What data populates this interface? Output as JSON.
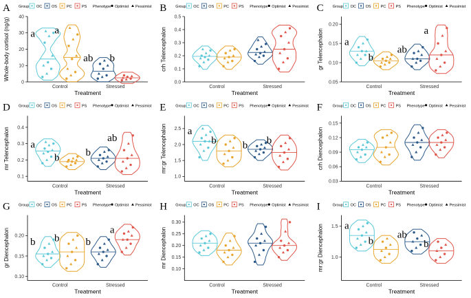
{
  "figure": {
    "legend": {
      "group_title": "Group",
      "groups": [
        {
          "label": "OC",
          "color": "#5bc8d8"
        },
        {
          "label": "OS",
          "color": "#2b5a8a"
        },
        {
          "label": "PC",
          "color": "#e8a42c"
        },
        {
          "label": "PS",
          "color": "#e0554a"
        }
      ],
      "phenotype_title": "Phenotype",
      "phenotypes": [
        {
          "label": "Optimist",
          "shape": "circle"
        },
        {
          "label": "Pessimist",
          "shape": "triangle"
        }
      ]
    },
    "x_title": "Treatment",
    "x_categories": [
      "Control",
      "Stressed"
    ]
  },
  "chart_data": [
    {
      "panel": "A",
      "type": "violin",
      "ylabel": "Whole-body cortisol (ng/g)",
      "ylim": [
        0,
        40
      ],
      "yticks": [
        0,
        10,
        20,
        30,
        40
      ],
      "groups": [
        {
          "name": "OC",
          "treatment": "Control",
          "values": [
            3,
            5,
            8,
            10,
            12,
            16,
            24,
            28,
            30,
            31
          ]
        },
        {
          "name": "PC",
          "treatment": "Control",
          "values": [
            2,
            4,
            6,
            8,
            14,
            16,
            22,
            26,
            29,
            33
          ]
        },
        {
          "name": "OS",
          "treatment": "Stressed",
          "values": [
            2,
            3,
            4,
            5,
            8,
            10,
            11,
            13
          ]
        },
        {
          "name": "PS",
          "treatment": "Stressed",
          "values": [
            1,
            1.5,
            2,
            2.5,
            3,
            3.5,
            4
          ]
        }
      ],
      "letters": [
        "a",
        "a",
        "ab",
        "b"
      ]
    },
    {
      "panel": "B",
      "type": "violin",
      "ylabel": "crh Telencephalon",
      "ylim": [
        0,
        0.5
      ],
      "yticks": [
        0.0,
        0.1,
        0.2,
        0.3,
        0.4,
        0.5
      ],
      "groups": [
        {
          "name": "OC",
          "treatment": "Control",
          "values": [
            0.12,
            0.15,
            0.17,
            0.18,
            0.19,
            0.2,
            0.2,
            0.22,
            0.24,
            0.25
          ]
        },
        {
          "name": "PC",
          "treatment": "Control",
          "values": [
            0.12,
            0.15,
            0.16,
            0.18,
            0.19,
            0.2,
            0.22,
            0.24,
            0.25
          ]
        },
        {
          "name": "OS",
          "treatment": "Stressed",
          "values": [
            0.16,
            0.19,
            0.2,
            0.21,
            0.22,
            0.23,
            0.25,
            0.27,
            0.29,
            0.32
          ]
        },
        {
          "name": "PS",
          "treatment": "Stressed",
          "values": [
            0.1,
            0.15,
            0.18,
            0.22,
            0.25,
            0.3,
            0.35,
            0.38,
            0.41
          ]
        }
      ],
      "letters": []
    },
    {
      "panel": "C",
      "type": "violin",
      "ylabel": "gr Telencephalon",
      "ylim": [
        0.05,
        0.22
      ],
      "yticks": [
        0.05,
        0.1,
        0.15,
        0.2
      ],
      "groups": [
        {
          "name": "OC",
          "treatment": "Control",
          "values": [
            0.1,
            0.11,
            0.12,
            0.12,
            0.13,
            0.13,
            0.14,
            0.15,
            0.16
          ]
        },
        {
          "name": "PC",
          "treatment": "Control",
          "values": [
            0.09,
            0.095,
            0.1,
            0.1,
            0.105,
            0.11,
            0.11,
            0.115,
            0.12
          ]
        },
        {
          "name": "OS",
          "treatment": "Stressed",
          "values": [
            0.09,
            0.1,
            0.105,
            0.11,
            0.11,
            0.12,
            0.125,
            0.13,
            0.14
          ]
        },
        {
          "name": "PS",
          "treatment": "Stressed",
          "values": [
            0.08,
            0.09,
            0.1,
            0.11,
            0.12,
            0.13,
            0.15,
            0.17,
            0.19
          ]
        }
      ],
      "letters": [
        "a",
        "b",
        "ab",
        "a"
      ]
    },
    {
      "panel": "D",
      "type": "violin",
      "ylabel": "mr Telencephalon",
      "ylim": [
        0.07,
        0.47
      ],
      "yticks": [
        0.1,
        0.2,
        0.3,
        0.4
      ],
      "groups": [
        {
          "name": "OC",
          "treatment": "Control",
          "values": [
            0.18,
            0.2,
            0.22,
            0.24,
            0.25,
            0.26,
            0.27,
            0.29,
            0.3,
            0.31
          ]
        },
        {
          "name": "PC",
          "treatment": "Control",
          "values": [
            0.16,
            0.17,
            0.18,
            0.19,
            0.19,
            0.2,
            0.2,
            0.21,
            0.22
          ]
        },
        {
          "name": "OS",
          "treatment": "Stressed",
          "values": [
            0.16,
            0.18,
            0.19,
            0.2,
            0.21,
            0.22,
            0.23,
            0.25,
            0.26
          ]
        },
        {
          "name": "PS",
          "treatment": "Stressed",
          "values": [
            0.13,
            0.15,
            0.17,
            0.19,
            0.21,
            0.23,
            0.26,
            0.3,
            0.35
          ]
        }
      ],
      "letters": [
        "a",
        "b",
        "b",
        "ab"
      ]
    },
    {
      "panel": "E",
      "type": "violin",
      "ylabel": "mr:gr Telencephalon",
      "ylim": [
        0.85,
        2.9
      ],
      "yticks": [
        1.0,
        1.5,
        2.0,
        2.5
      ],
      "groups": [
        {
          "name": "OC",
          "treatment": "Control",
          "values": [
            1.6,
            1.8,
            1.9,
            2.0,
            2.1,
            2.1,
            2.2,
            2.3,
            2.4,
            2.5
          ]
        },
        {
          "name": "PC",
          "treatment": "Control",
          "values": [
            1.4,
            1.5,
            1.6,
            1.7,
            1.8,
            1.9,
            2.0,
            2.1,
            2.2
          ]
        },
        {
          "name": "OS",
          "treatment": "Stressed",
          "values": [
            1.6,
            1.7,
            1.75,
            1.8,
            1.85,
            1.9,
            1.95,
            2.0,
            2.05
          ]
        },
        {
          "name": "PS",
          "treatment": "Stressed",
          "values": [
            1.3,
            1.45,
            1.55,
            1.65,
            1.75,
            1.85,
            1.95,
            2.05,
            2.2
          ]
        }
      ],
      "letters": [
        "a",
        "b",
        "b",
        "b"
      ]
    },
    {
      "panel": "F",
      "type": "violin",
      "ylabel": "crh Diencephalon",
      "ylim": [
        0.03,
        0.165
      ],
      "yticks": [
        0.03,
        0.06,
        0.09,
        0.12,
        0.15
      ],
      "groups": [
        {
          "name": "OC",
          "treatment": "Control",
          "values": [
            0.075,
            0.08,
            0.085,
            0.09,
            0.095,
            0.1,
            0.1,
            0.105,
            0.11
          ]
        },
        {
          "name": "PC",
          "treatment": "Control",
          "values": [
            0.07,
            0.08,
            0.085,
            0.09,
            0.1,
            0.11,
            0.12,
            0.125,
            0.13
          ]
        },
        {
          "name": "OS",
          "treatment": "Stressed",
          "values": [
            0.08,
            0.09,
            0.1,
            0.105,
            0.11,
            0.115,
            0.12,
            0.13,
            0.14
          ]
        },
        {
          "name": "PS",
          "treatment": "Stressed",
          "values": [
            0.085,
            0.095,
            0.1,
            0.105,
            0.11,
            0.115,
            0.12,
            0.125,
            0.13
          ]
        }
      ],
      "letters": []
    },
    {
      "panel": "G",
      "type": "violin",
      "ylabel": "gr Diencephalon",
      "ylim": [
        0.09,
        0.25
      ],
      "yticks": [
        0.1,
        0.15,
        0.2
      ],
      "groups": [
        {
          "name": "OC",
          "treatment": "Control",
          "values": [
            0.13,
            0.14,
            0.145,
            0.15,
            0.155,
            0.16,
            0.17,
            0.18,
            0.19
          ]
        },
        {
          "name": "PC",
          "treatment": "Control",
          "values": [
            0.12,
            0.13,
            0.14,
            0.15,
            0.16,
            0.17,
            0.18,
            0.19,
            0.2
          ]
        },
        {
          "name": "OS",
          "treatment": "Stressed",
          "values": [
            0.13,
            0.14,
            0.15,
            0.155,
            0.16,
            0.165,
            0.17,
            0.18,
            0.19
          ]
        },
        {
          "name": "PS",
          "treatment": "Stressed",
          "values": [
            0.16,
            0.17,
            0.18,
            0.19,
            0.19,
            0.2,
            0.205,
            0.21,
            0.22
          ]
        }
      ],
      "letters": [
        "b",
        "b",
        "b",
        "a"
      ]
    },
    {
      "panel": "H",
      "type": "violin",
      "ylabel": "mr Diencephalon",
      "ylim": [
        0.05,
        0.33
      ],
      "yticks": [
        0.1,
        0.15,
        0.2,
        0.25,
        0.3
      ],
      "groups": [
        {
          "name": "OC",
          "treatment": "Control",
          "values": [
            0.17,
            0.18,
            0.19,
            0.2,
            0.21,
            0.22,
            0.23,
            0.24,
            0.25
          ]
        },
        {
          "name": "PC",
          "treatment": "Control",
          "values": [
            0.13,
            0.15,
            0.16,
            0.17,
            0.18,
            0.19,
            0.2,
            0.22,
            0.24
          ]
        },
        {
          "name": "OS",
          "treatment": "Stressed",
          "values": [
            0.13,
            0.16,
            0.18,
            0.2,
            0.21,
            0.22,
            0.23,
            0.25,
            0.28
          ]
        },
        {
          "name": "PS",
          "treatment": "Stressed",
          "values": [
            0.15,
            0.17,
            0.18,
            0.19,
            0.2,
            0.21,
            0.22,
            0.26,
            0.3
          ]
        }
      ],
      "letters": []
    },
    {
      "panel": "I",
      "type": "violin",
      "ylabel": "mr:gr Diencephalon",
      "ylim": [
        0.62,
        1.68
      ],
      "yticks": [
        1.0,
        1.5
      ],
      "groups": [
        {
          "name": "OC",
          "treatment": "Control",
          "values": [
            1.15,
            1.2,
            1.25,
            1.3,
            1.35,
            1.4,
            1.45,
            1.5,
            1.55
          ]
        },
        {
          "name": "PC",
          "treatment": "Control",
          "values": [
            0.95,
            1.0,
            1.05,
            1.1,
            1.15,
            1.2,
            1.25,
            1.3
          ]
        },
        {
          "name": "OS",
          "treatment": "Stressed",
          "values": [
            1.1,
            1.15,
            1.2,
            1.25,
            1.3,
            1.35,
            1.4
          ]
        },
        {
          "name": "PS",
          "treatment": "Stressed",
          "values": [
            0.95,
            1.0,
            1.05,
            1.1,
            1.15,
            1.2,
            1.25
          ]
        }
      ],
      "letters": [
        "a",
        "b",
        "ab",
        "b"
      ]
    }
  ]
}
